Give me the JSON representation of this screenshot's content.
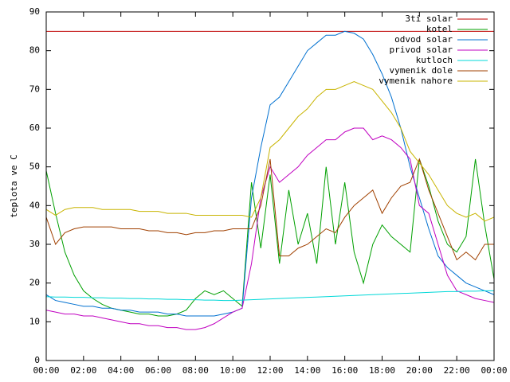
{
  "chart_data": {
    "type": "line",
    "ylabel": "teplota ve C",
    "x": [
      0,
      0.5,
      1,
      1.5,
      2,
      2.5,
      3,
      3.5,
      4,
      4.5,
      5,
      5.5,
      6,
      6.5,
      7,
      7.5,
      8,
      8.5,
      9,
      9.5,
      10,
      10.5,
      11,
      11.5,
      12,
      12.5,
      13,
      13.5,
      14,
      14.5,
      15,
      15.5,
      16,
      16.5,
      17,
      17.5,
      18,
      18.5,
      19,
      19.5,
      20,
      20.5,
      21,
      21.5,
      22,
      22.5,
      23,
      23.5,
      24
    ],
    "xlim": [
      0,
      24
    ],
    "xticks": [
      {
        "value": 0,
        "label": "00:00"
      },
      {
        "value": 2,
        "label": "02:00"
      },
      {
        "value": 4,
        "label": "04:00"
      },
      {
        "value": 6,
        "label": "06:00"
      },
      {
        "value": 8,
        "label": "08:00"
      },
      {
        "value": 10,
        "label": "10:00"
      },
      {
        "value": 12,
        "label": "12:00"
      },
      {
        "value": 14,
        "label": "14:00"
      },
      {
        "value": 16,
        "label": "16:00"
      },
      {
        "value": 18,
        "label": "18:00"
      },
      {
        "value": 20,
        "label": "20:00"
      },
      {
        "value": 22,
        "label": "22:00"
      },
      {
        "value": 24,
        "label": "00:00"
      }
    ],
    "ylim": [
      0,
      90
    ],
    "yticks": [
      0,
      10,
      20,
      30,
      40,
      50,
      60,
      70,
      80,
      90
    ],
    "legend": "top-right",
    "series": [
      {
        "name": "3ti solar",
        "color": "#c00000",
        "values": [
          85,
          85,
          85,
          85,
          85,
          85,
          85,
          85,
          85,
          85,
          85,
          85,
          85,
          85,
          85,
          85,
          85,
          85,
          85,
          85,
          85,
          85,
          85,
          85,
          85,
          85,
          85,
          85,
          85,
          85,
          85,
          85,
          85,
          85,
          85,
          85,
          85,
          85,
          85,
          85,
          85,
          85,
          85,
          85,
          85,
          85,
          85,
          85,
          85
        ]
      },
      {
        "name": "kotel",
        "color": "#00a000",
        "values": [
          49,
          38,
          28,
          22,
          18,
          16,
          14.5,
          13.5,
          13,
          12.5,
          12,
          12,
          11.5,
          11.5,
          12,
          13,
          16,
          18,
          17,
          18,
          16,
          14,
          46,
          29,
          48,
          25,
          44,
          30,
          38,
          25,
          50,
          30,
          46,
          28,
          20,
          30,
          35,
          32,
          30,
          28,
          52,
          45,
          36,
          30,
          28,
          32,
          52,
          35,
          21
        ]
      },
      {
        "name": "odvod solar",
        "color": "#0070d0",
        "values": [
          17,
          15.5,
          15,
          14.5,
          14,
          14,
          13.5,
          13.5,
          13,
          13,
          12.5,
          12.5,
          12.5,
          12,
          12,
          11.5,
          11.5,
          11.5,
          11.5,
          12,
          12.5,
          13.5,
          42,
          55,
          66,
          68,
          72,
          76,
          80,
          82,
          84,
          84,
          85,
          84.5,
          83,
          79,
          74,
          68,
          60,
          50,
          42,
          34,
          27,
          24,
          22,
          20,
          19,
          18,
          17
        ]
      },
      {
        "name": "privod solar",
        "color": "#c000c0",
        "values": [
          13,
          12.5,
          12,
          12,
          11.5,
          11.5,
          11,
          10.5,
          10,
          9.5,
          9.5,
          9,
          9,
          8.5,
          8.5,
          8,
          8,
          8.5,
          9.5,
          11,
          12.5,
          13.5,
          25,
          42,
          50,
          46,
          48,
          50,
          53,
          55,
          57,
          57,
          59,
          60,
          60,
          57,
          58,
          57,
          55,
          52,
          40,
          38,
          30,
          22,
          18,
          17,
          16,
          15.5,
          15
        ]
      },
      {
        "name": "kutloch",
        "color": "#00d8d8",
        "values": [
          16.5,
          16.4,
          16.4,
          16.3,
          16.3,
          16.2,
          16.2,
          16.1,
          16.1,
          16,
          16,
          15.9,
          15.9,
          15.8,
          15.8,
          15.7,
          15.7,
          15.6,
          15.6,
          15.5,
          15.5,
          15.6,
          15.7,
          15.8,
          15.9,
          16,
          16.1,
          16.2,
          16.3,
          16.4,
          16.5,
          16.6,
          16.7,
          16.8,
          16.9,
          17,
          17.1,
          17.2,
          17.3,
          17.4,
          17.5,
          17.6,
          17.7,
          17.8,
          17.8,
          17.9,
          17.9,
          18,
          18
        ]
      },
      {
        "name": "vymenik dole",
        "color": "#a04000",
        "values": [
          37,
          30,
          33,
          34,
          34.5,
          34.5,
          34.5,
          34.5,
          34,
          34,
          34,
          33.5,
          33.5,
          33,
          33,
          32.5,
          33,
          33,
          33.5,
          33.5,
          34,
          34,
          34,
          40,
          52,
          27,
          27,
          29,
          30,
          32,
          34,
          33,
          37,
          40,
          42,
          44,
          38,
          42,
          45,
          46,
          52,
          44,
          38,
          32,
          26,
          28,
          26,
          30,
          30
        ]
      },
      {
        "name": "vymenik nahore",
        "color": "#c8b400",
        "values": [
          39,
          37.5,
          39,
          39.5,
          39.5,
          39.5,
          39,
          39,
          39,
          39,
          38.5,
          38.5,
          38.5,
          38,
          38,
          38,
          37.5,
          37.5,
          37.5,
          37.5,
          37.5,
          37.5,
          37,
          42,
          55,
          57,
          60,
          63,
          65,
          68,
          70,
          70,
          71,
          72,
          71,
          70,
          67,
          64,
          60,
          54,
          51,
          48,
          44,
          40,
          38,
          37,
          38,
          36,
          37
        ]
      }
    ]
  }
}
